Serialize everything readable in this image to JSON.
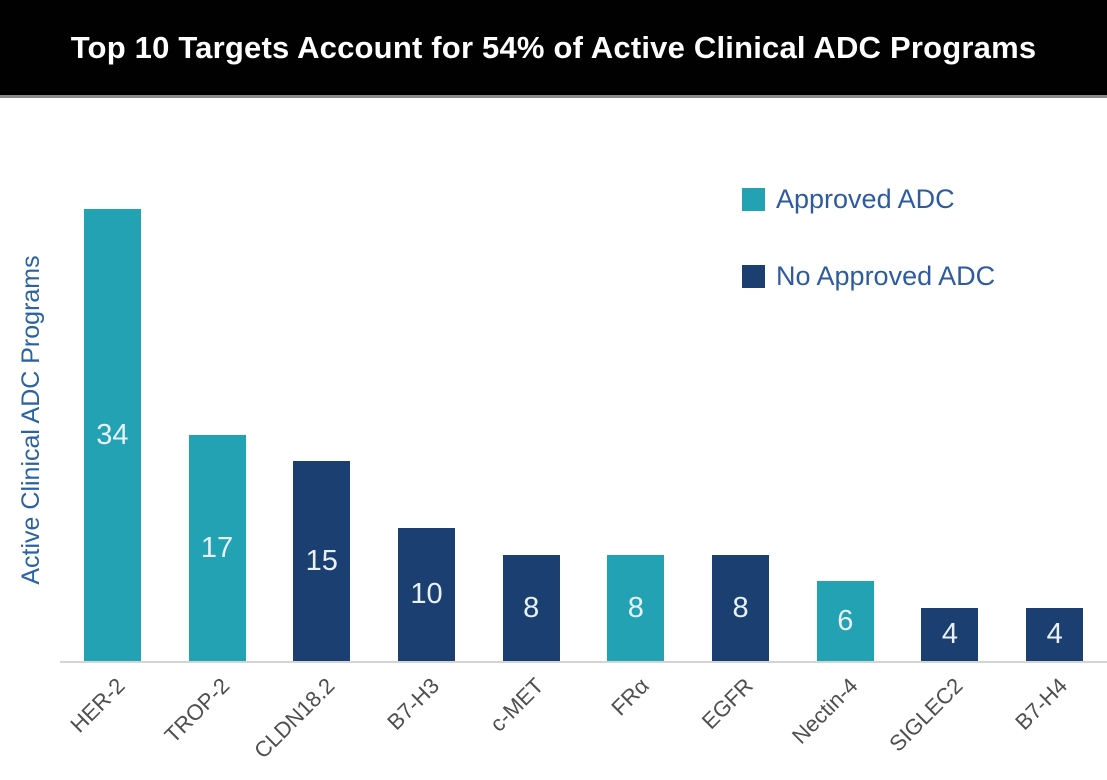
{
  "header": {
    "title": "Top 10 Targets Account for 54% of Active Clinical ADC Programs"
  },
  "legend": {
    "items": [
      {
        "label": "Approved ADC",
        "color": "#23a2b3"
      },
      {
        "label": "No Approved ADC",
        "color": "#1c3f72"
      }
    ]
  },
  "chart_data": {
    "type": "bar",
    "title": "Top 10 Targets Account for 54% of Active Clinical ADC Programs",
    "xlabel": "",
    "ylabel": "Active Clinical ADC Programs",
    "ylim": [
      0,
      35
    ],
    "grid": false,
    "legend_position": "top-right",
    "categories": [
      "HER-2",
      "TROP-2",
      "CLDN18.2",
      "B7-H3",
      "c-MET",
      "FRα",
      "EGFR",
      "Nectin-4",
      "SIGLEC2",
      "B7-H4"
    ],
    "values": [
      34,
      17,
      15,
      10,
      8,
      8,
      8,
      6,
      4,
      4
    ],
    "series_membership": [
      "Approved ADC",
      "Approved ADC",
      "No Approved ADC",
      "No Approved ADC",
      "No Approved ADC",
      "Approved ADC",
      "No Approved ADC",
      "Approved ADC",
      "No Approved ADC",
      "No Approved ADC"
    ],
    "colors": {
      "Approved ADC": "#23a2b3",
      "No Approved ADC": "#1c3f72"
    },
    "value_label_color": "#e8f1f8"
  }
}
